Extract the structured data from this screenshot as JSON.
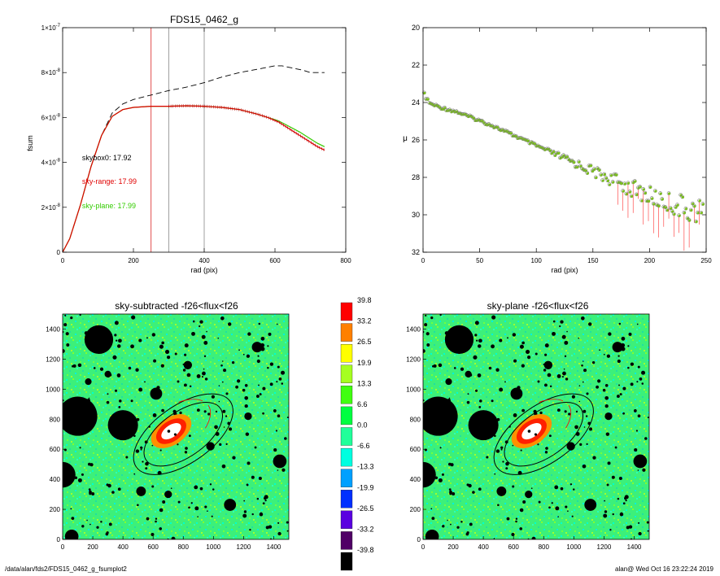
{
  "footer": {
    "path": "/data/alan/fds2/FDS15_0462_g_fsumplot2",
    "stamp": "alan@  Wed Oct 16 23:22:24 2019"
  },
  "chart_data": [
    {
      "id": "fsum",
      "type": "line",
      "title": "FDS15_0462_g",
      "xlabel": "rad (pix)",
      "ylabel": "fsum",
      "xlim": [
        0,
        800
      ],
      "ylim": [
        0,
        1e-07
      ],
      "xticks": [
        "0",
        "200",
        "400",
        "600",
        "800"
      ],
      "yticks": [
        {
          "value": 0,
          "mant": "0",
          "exp": ""
        },
        {
          "value": 2e-08,
          "mant": "2×10",
          "exp": "-8"
        },
        {
          "value": 4e-08,
          "mant": "4×10",
          "exp": "-8"
        },
        {
          "value": 6e-08,
          "mant": "6×10",
          "exp": "-8"
        },
        {
          "value": 8e-08,
          "mant": "8×10",
          "exp": "-8"
        },
        {
          "value": 1e-07,
          "mant": "1×10",
          "exp": "-7"
        }
      ],
      "vlines": [
        {
          "x": 250,
          "color": "#d40000"
        },
        {
          "x": 300,
          "color": "#777777"
        },
        {
          "x": 400,
          "color": "#777777"
        }
      ],
      "annotations": [
        {
          "text": "skybox0: 17.92",
          "color": "#000000",
          "x": 55,
          "y": 4.1e-08
        },
        {
          "text": "sky-range: 17.99",
          "color": "#e00000",
          "x": 55,
          "y": 3.05e-08
        },
        {
          "text": "sky-plane: 17.99",
          "color": "#33cc00",
          "x": 55,
          "y": 1.95e-08
        }
      ],
      "series": [
        {
          "style": "dashed",
          "color": "#000000",
          "x": [
            0,
            20,
            50,
            80,
            110,
            140,
            170,
            200,
            250,
            300,
            350,
            400,
            450,
            500,
            550,
            600,
            620,
            650,
            680,
            700,
            720,
            740
          ],
          "y": [
            0,
            6e-09,
            2.1e-08,
            3.8e-08,
            5.2e-08,
            6.2e-08,
            6.6e-08,
            6.8e-08,
            7e-08,
            7.2e-08,
            7.35e-08,
            7.55e-08,
            7.8e-08,
            8e-08,
            8.15e-08,
            8.3e-08,
            8.3e-08,
            8.2e-08,
            8.1e-08,
            8e-08,
            8e-08,
            8e-08
          ]
        },
        {
          "style": "solid",
          "color": "#33cc00",
          "x": [
            0,
            20,
            50,
            80,
            110,
            140,
            170,
            200,
            250,
            300,
            350,
            400,
            450,
            500,
            550,
            580,
            610,
            640,
            670,
            700,
            720,
            740
          ],
          "y": [
            0,
            6e-09,
            2.1e-08,
            3.8e-08,
            5.2e-08,
            6.05e-08,
            6.35e-08,
            6.45e-08,
            6.5e-08,
            6.5e-08,
            6.52e-08,
            6.5e-08,
            6.45e-08,
            6.35e-08,
            6.15e-08,
            6e-08,
            5.85e-08,
            5.6e-08,
            5.35e-08,
            5.05e-08,
            4.85e-08,
            4.7e-08
          ]
        },
        {
          "style": "solid",
          "color": "#e00000",
          "x": [
            0,
            20,
            50,
            80,
            110,
            140,
            170,
            200,
            250,
            300,
            350,
            400,
            450,
            500,
            550,
            580,
            610,
            640,
            670,
            700,
            720,
            740
          ],
          "y": [
            0,
            6e-09,
            2.1e-08,
            3.8e-08,
            5.2e-08,
            6.05e-08,
            6.35e-08,
            6.45e-08,
            6.5e-08,
            6.5e-08,
            6.52e-08,
            6.5e-08,
            6.45e-08,
            6.35e-08,
            6.15e-08,
            6e-08,
            5.8e-08,
            5.5e-08,
            5.2e-08,
            4.9e-08,
            4.7e-08,
            4.55e-08
          ]
        }
      ]
    },
    {
      "id": "mu",
      "type": "scatter",
      "title": "",
      "xlabel": "rad (pix)",
      "ylabel": "μ",
      "xlim": [
        0,
        250
      ],
      "ylim": [
        32,
        20
      ],
      "xticks": [
        "0",
        "50",
        "100",
        "150",
        "200",
        "250"
      ],
      "yticks": [
        "20",
        "22",
        "24",
        "26",
        "28",
        "30",
        "32"
      ],
      "profile_knots": {
        "x": [
          0,
          2,
          6,
          15,
          30,
          60,
          100,
          140,
          170,
          200,
          230,
          248
        ],
        "y": [
          23.4,
          23.7,
          24.05,
          24.25,
          24.5,
          25.2,
          26.3,
          27.4,
          28.2,
          29.0,
          29.6,
          29.9
        ]
      },
      "points": {
        "x_start": 1,
        "x_end": 248,
        "step": 1.5,
        "scatter_from_x": 100,
        "scatter_amp": 0.6,
        "drop_from_x": 170
      },
      "colors": {
        "open": "#777777",
        "fill": "#7bbf1e",
        "drop": "#ff3030"
      }
    },
    {
      "id": "sky-subtracted",
      "type": "heatmap",
      "title": "sky-subtracted -f26<flux<f26",
      "xlim": [
        0,
        1500
      ],
      "ylim": [
        0,
        1500
      ],
      "xticks": [
        "0",
        "200",
        "400",
        "600",
        "800",
        "1000",
        "1200",
        "1400"
      ],
      "yticks": [
        "0",
        "200",
        "400",
        "600",
        "800",
        "1000",
        "1200",
        "1400"
      ]
    },
    {
      "id": "sky-plane",
      "type": "heatmap",
      "title": "sky-plane -f26<flux<f26",
      "xlim": [
        0,
        1500
      ],
      "ylim": [
        0,
        1500
      ],
      "xticks": [
        "0",
        "200",
        "400",
        "600",
        "800",
        "1000",
        "1200",
        "1400"
      ],
      "yticks": [
        "0",
        "200",
        "400",
        "600",
        "800",
        "1000",
        "1200",
        "1400"
      ]
    },
    {
      "id": "colorbar",
      "type": "colorbar",
      "levels": [
        {
          "label": "39.8",
          "color": "#ff0000"
        },
        {
          "label": "33.2",
          "color": "#ff8000"
        },
        {
          "label": "26.5",
          "color": "#ffff00"
        },
        {
          "label": "19.9",
          "color": "#a6ff20"
        },
        {
          "label": "13.3",
          "color": "#40ff10"
        },
        {
          "label": "6.6",
          "color": "#00ff40"
        },
        {
          "label": "0.0",
          "color": "#20ff9a"
        },
        {
          "label": "-6.6",
          "color": "#00ffe0"
        },
        {
          "label": "-13.3",
          "color": "#00a0ff"
        },
        {
          "label": "-19.9",
          "color": "#0030ff"
        },
        {
          "label": "-26.5",
          "color": "#5a00e0"
        },
        {
          "label": "-33.2",
          "color": "#500066"
        },
        {
          "label": "-39.8",
          "color": "#000000"
        }
      ]
    }
  ],
  "image_scene": {
    "background": "#3cf07a",
    "masks": [
      {
        "x": 240,
        "y": 1330,
        "r": 95
      },
      {
        "x": 100,
        "y": 820,
        "r": 130
      },
      {
        "x": 400,
        "y": 760,
        "r": 100
      },
      {
        "x": 620,
        "y": 970,
        "r": 40
      },
      {
        "x": 0,
        "y": 430,
        "r": 85
      },
      {
        "x": 1290,
        "y": 1280,
        "r": 35
      },
      {
        "x": 1110,
        "y": 230,
        "r": 40
      },
      {
        "x": 60,
        "y": 20,
        "r": 45
      },
      {
        "x": 1440,
        "y": 520,
        "r": 45
      },
      {
        "x": 830,
        "y": 1160,
        "r": 28
      },
      {
        "x": 170,
        "y": 1050,
        "r": 22
      },
      {
        "x": 1230,
        "y": 820,
        "r": 25
      },
      {
        "x": 520,
        "y": 320,
        "r": 32
      },
      {
        "x": 980,
        "y": 620,
        "r": 28
      },
      {
        "x": 300,
        "y": 1100,
        "r": 22
      },
      {
        "x": 700,
        "y": 300,
        "r": 25
      }
    ],
    "galaxy": {
      "x": 720,
      "y": 720,
      "halo_rx": 150,
      "halo_ry": 90,
      "core_rx": 75,
      "core_ry": 40,
      "angle": -35
    },
    "ellipses": [
      {
        "x": 800,
        "y": 700,
        "rx": 380,
        "ry": 190,
        "angle": -35
      },
      {
        "x": 800,
        "y": 700,
        "rx": 300,
        "ry": 150,
        "angle": -35
      }
    ],
    "red_arc": {
      "x": 720,
      "y": 720,
      "rx": 300,
      "ry": 150,
      "angle": -35
    }
  }
}
